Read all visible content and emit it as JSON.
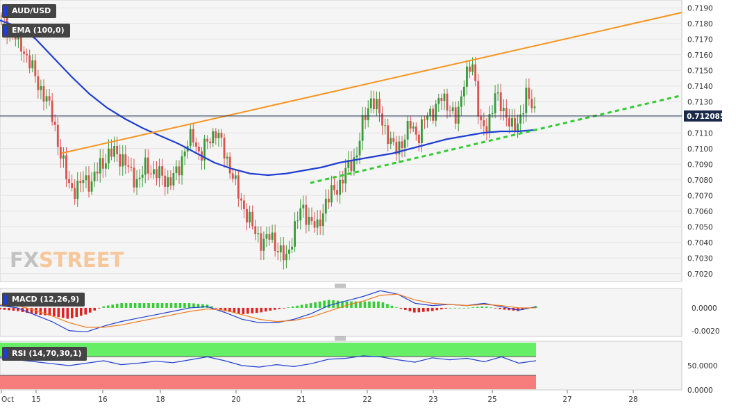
{
  "panels": {
    "main_label": "AUD/USD",
    "ema_label": "EMA (100,0)",
    "macd_label": "MACD (12,26,9)",
    "rsi_label": "RSI (14,70,30,1)",
    "watermark_left": "FX",
    "watermark_right": "STREET"
  },
  "colors": {
    "up": "#3a9a3a",
    "down": "#d9534f",
    "ema": "#1f3fd1",
    "trend_upper": "#f7941d",
    "trend_lower": "#33cc33",
    "macd_line": "#1f3fd1",
    "signal_line": "#f07b1e",
    "hist_pos": "#33cc33",
    "hist_neg": "#e02020",
    "rsi_line": "#1f3fd1",
    "rsi_ob_zone": "#66ee66",
    "rsi_os_zone": "#f77c7c"
  },
  "chart_data": [
    {
      "type": "candlestick",
      "symbol": "AUD/USD",
      "ylim": [
        0.7015,
        0.7195
      ],
      "yticks": [
        "0.7190",
        "0.7180",
        "0.7170",
        "0.7160",
        "0.7150",
        "0.7140",
        "0.7130",
        "0.7120",
        "0.7110",
        "0.7100",
        "0.7090",
        "0.7080",
        "0.7070",
        "0.7060",
        "0.7050",
        "0.7040",
        "0.7030",
        "0.7020"
      ],
      "current_price": "0.712085",
      "xticks": [
        "Oct",
        "15",
        "16",
        "18",
        "20",
        "21",
        "22",
        "23",
        "25",
        "27",
        "28"
      ],
      "close_path": [
        0.7185,
        0.7178,
        0.7172,
        0.7165,
        0.7155,
        0.7142,
        0.7133,
        0.712,
        0.7095,
        0.7078,
        0.7072,
        0.7082,
        0.7077,
        0.709,
        0.7094,
        0.7099,
        0.7092,
        0.7085,
        0.7078,
        0.709,
        0.7084,
        0.7083,
        0.7078,
        0.7085,
        0.71,
        0.7108,
        0.7095,
        0.7105,
        0.7112,
        0.7098,
        0.7085,
        0.7068,
        0.7058,
        0.7046,
        0.704,
        0.7044,
        0.7036,
        0.7028,
        0.7048,
        0.7062,
        0.7055,
        0.7048,
        0.7065,
        0.7072,
        0.7078,
        0.7088,
        0.7095,
        0.7118,
        0.7133,
        0.7122,
        0.711,
        0.7098,
        0.7105,
        0.7115,
        0.7108,
        0.712,
        0.7125,
        0.7132,
        0.7128,
        0.7116,
        0.7148,
        0.7152,
        0.7118,
        0.711,
        0.714,
        0.712,
        0.7118,
        0.7112,
        0.714,
        0.712
      ],
      "ema": {
        "name": "EMA (100,0)",
        "values": [
          0.7182,
          0.7178,
          0.717,
          0.7158,
          0.7146,
          0.7135,
          0.7126,
          0.7119,
          0.7113,
          0.7108,
          0.7103,
          0.7097,
          0.7091,
          0.7087,
          0.7084,
          0.7083,
          0.7084,
          0.7086,
          0.7088,
          0.7091,
          0.7093,
          0.7095,
          0.7097,
          0.71,
          0.7103,
          0.7106,
          0.7108,
          0.711,
          0.7111,
          0.7111,
          0.7112
        ]
      },
      "trendlines": [
        {
          "name": "upper",
          "x": [
            0.09,
            1.0
          ],
          "y": [
            0.7097,
            0.7187
          ]
        },
        {
          "name": "lower",
          "x": [
            0.455,
            1.0
          ],
          "y": [
            0.7078,
            0.7134
          ]
        }
      ]
    },
    {
      "type": "line",
      "name": "MACD (12,26,9)",
      "ylim": [
        -0.0025,
        0.0017
      ],
      "yticks": [
        "0.0000",
        "-0.0020"
      ],
      "macd": [
        0.0002,
        0.0,
        -0.0006,
        -0.0012,
        -0.002,
        -0.0021,
        -0.0016,
        -0.0012,
        -0.0009,
        -0.0006,
        -0.0003,
        0.0,
        0.0001,
        -0.0004,
        -0.001,
        -0.0013,
        -0.0013,
        -0.001,
        -0.0005,
        0.0002,
        0.0006,
        0.001,
        0.0015,
        0.0012,
        0.0004,
        0.0002,
        0.0003,
        0.0002,
        0.0004,
        0.0001,
        -0.0002,
        0.0001
      ],
      "signal": [
        0.0003,
        0.0002,
        -0.0002,
        -0.0007,
        -0.0013,
        -0.0017,
        -0.0017,
        -0.0015,
        -0.0012,
        -0.0009,
        -0.0006,
        -0.0003,
        -0.0001,
        -0.0002,
        -0.0006,
        -0.001,
        -0.0012,
        -0.0011,
        -0.0008,
        -0.0003,
        0.0002,
        0.0006,
        0.0011,
        0.0012,
        0.0007,
        0.0004,
        0.0003,
        0.0002,
        0.0003,
        0.0002,
        0.0,
        0.0
      ]
    },
    {
      "type": "line",
      "name": "RSI (14,70,30,1)",
      "ylim": [
        0,
        100
      ],
      "yticks": [
        "50.0000",
        "0.0000"
      ],
      "overbought": 70,
      "oversold": 30,
      "values": [
        66,
        62,
        58,
        54,
        50,
        55,
        60,
        52,
        55,
        59,
        56,
        62,
        68,
        60,
        50,
        47,
        52,
        48,
        54,
        63,
        65,
        70,
        68,
        62,
        57,
        66,
        62,
        65,
        58,
        68,
        55,
        60
      ]
    }
  ]
}
